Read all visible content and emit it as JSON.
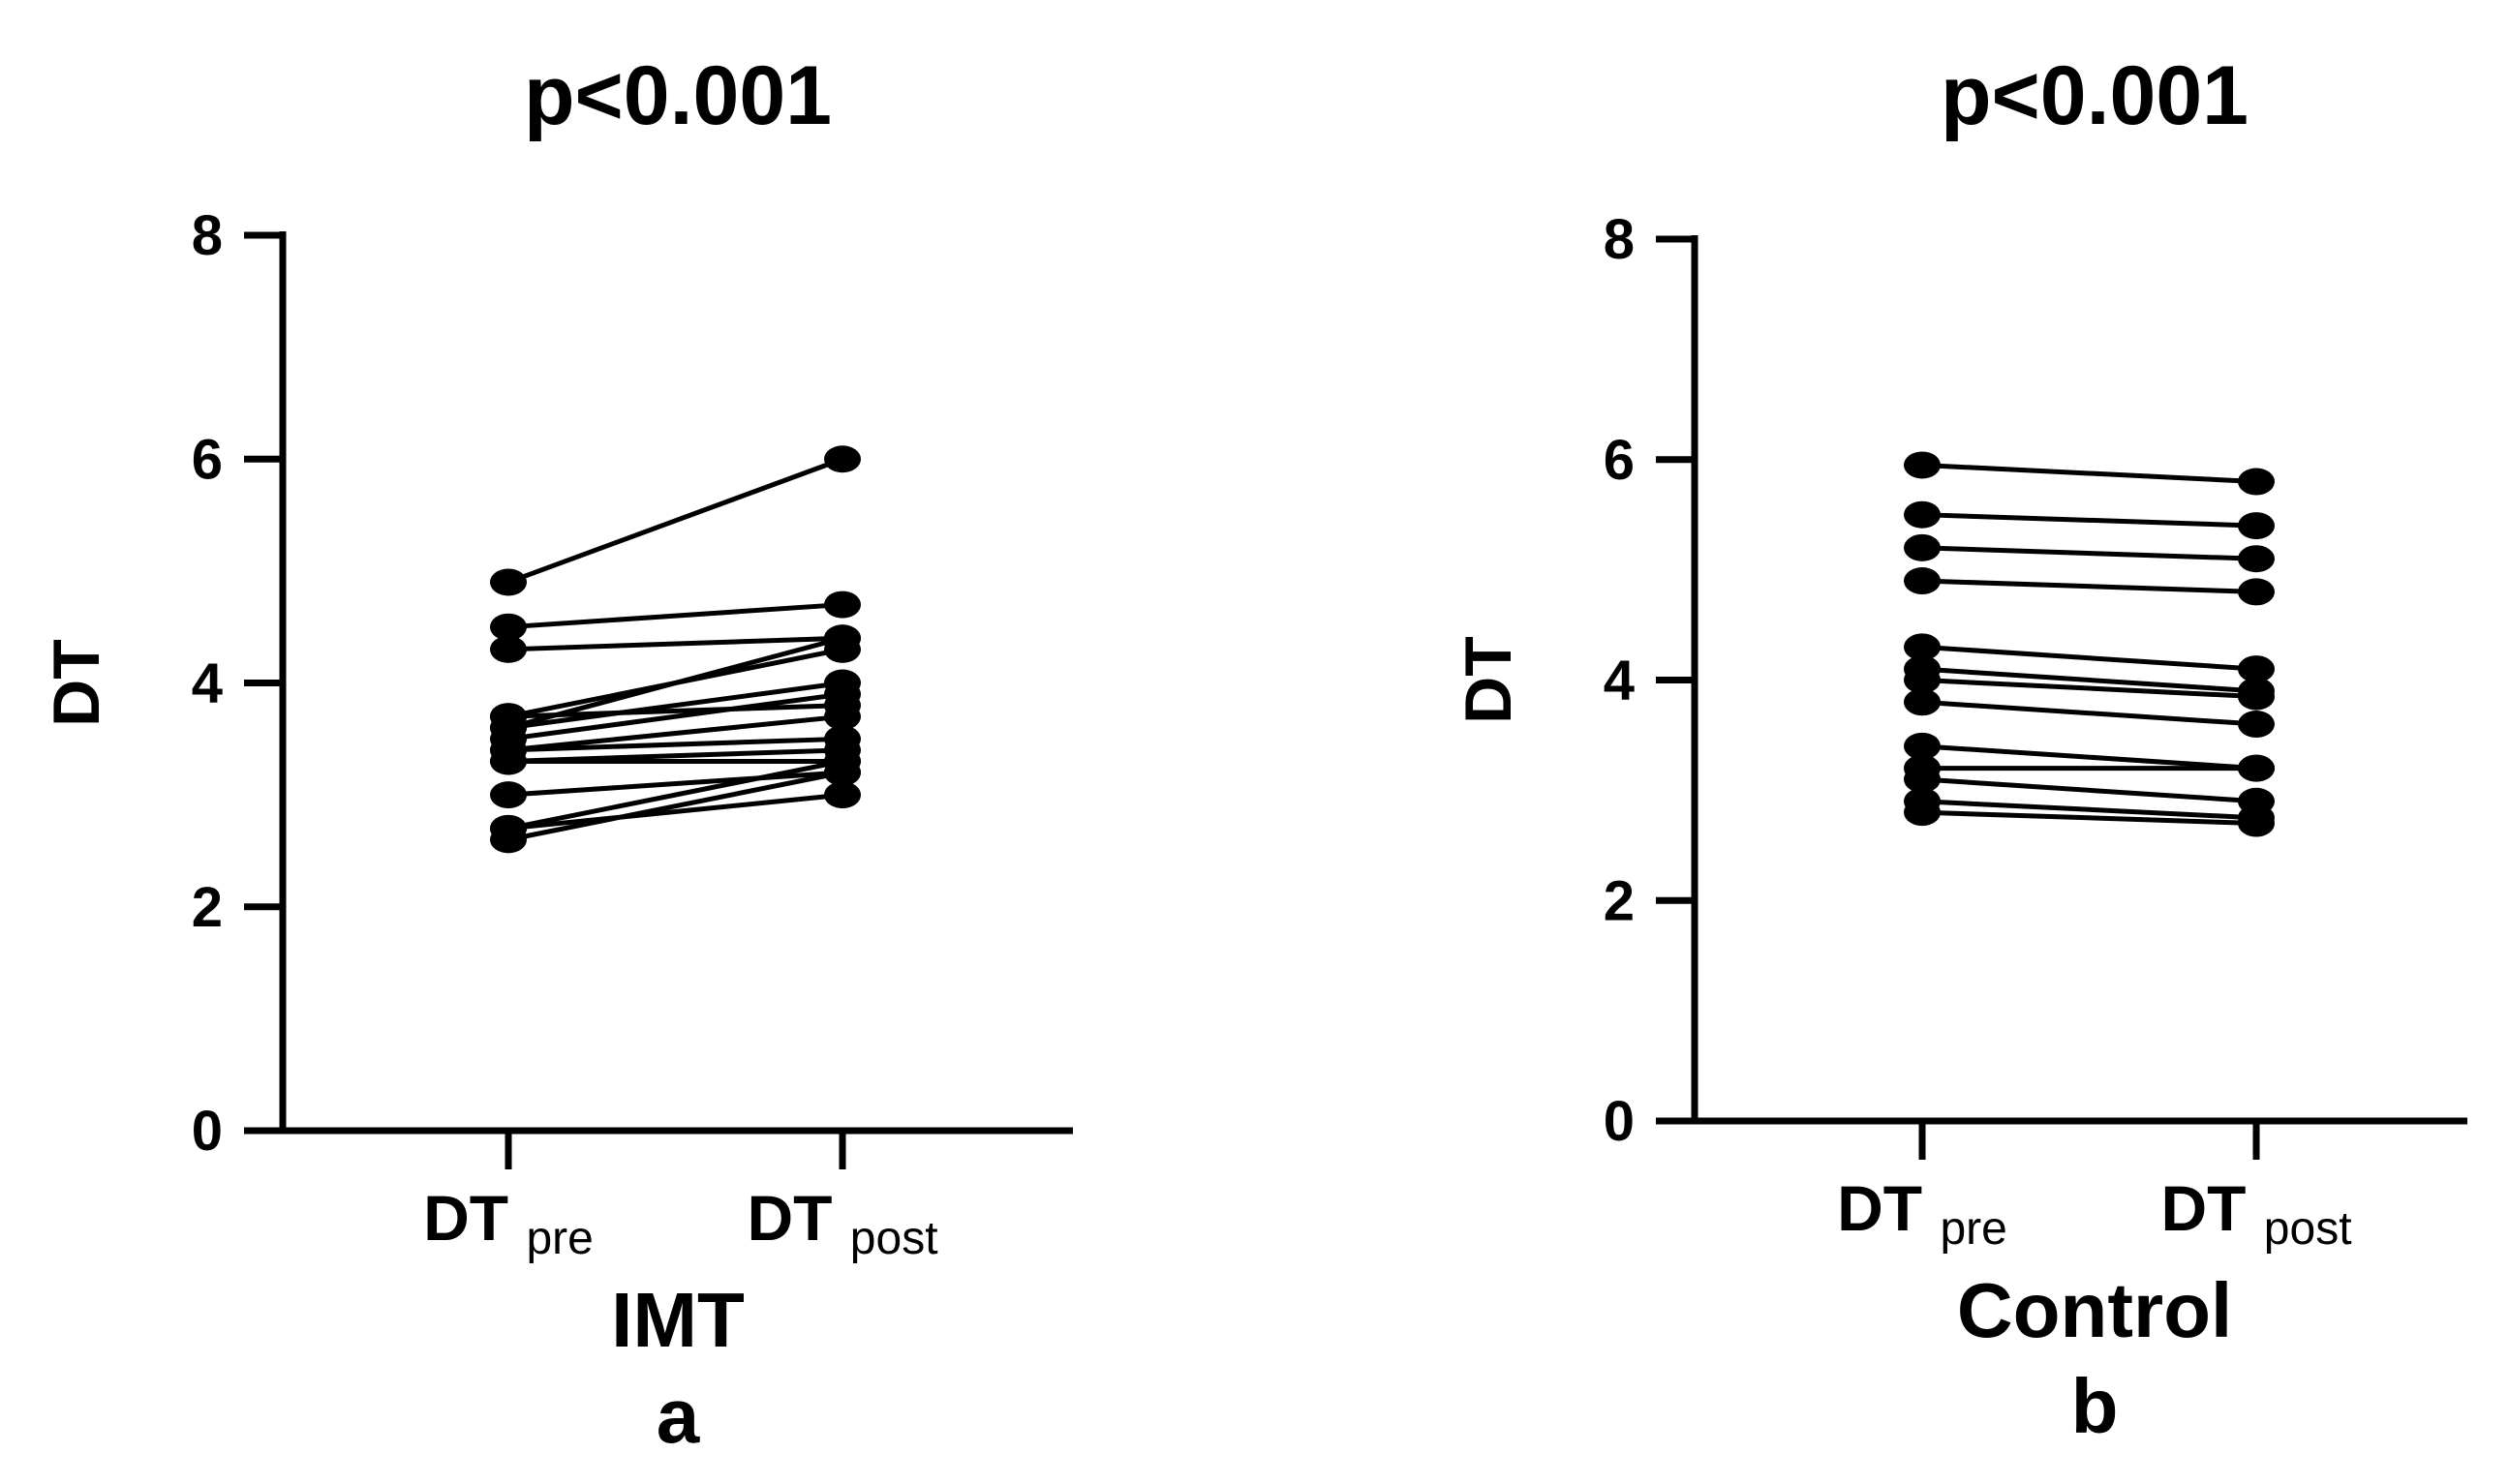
{
  "chart_data": [
    {
      "type": "line",
      "title": "p<0.001",
      "ylabel": "DT",
      "group_label": "IMT",
      "panel_label": "a",
      "categories": [
        {
          "main": "DT",
          "sub": "pre"
        },
        {
          "main": "DT",
          "sub": "post"
        }
      ],
      "ylim": [
        0,
        8
      ],
      "yticks": [
        0,
        2,
        4,
        6,
        8
      ],
      "pairs": [
        [
          4.9,
          6.0
        ],
        [
          4.5,
          4.7
        ],
        [
          4.3,
          4.4
        ],
        [
          3.7,
          4.3
        ],
        [
          3.6,
          4.4
        ],
        [
          3.7,
          3.8
        ],
        [
          3.6,
          4.0
        ],
        [
          3.5,
          3.9
        ],
        [
          3.4,
          3.7
        ],
        [
          3.4,
          3.5
        ],
        [
          3.3,
          3.4
        ],
        [
          3.3,
          3.3
        ],
        [
          3.0,
          3.2
        ],
        [
          2.7,
          3.3
        ],
        [
          2.7,
          3.0
        ],
        [
          2.6,
          3.2
        ]
      ]
    },
    {
      "type": "line",
      "title": "p<0.001",
      "ylabel": "DT",
      "group_label": "Control",
      "panel_label": "b",
      "categories": [
        {
          "main": "DT",
          "sub": "pre"
        },
        {
          "main": "DT",
          "sub": "post"
        }
      ],
      "ylim": [
        0,
        8
      ],
      "yticks": [
        0,
        2,
        4,
        6,
        8
      ],
      "pairs": [
        [
          5.95,
          5.8
        ],
        [
          5.5,
          5.4
        ],
        [
          5.2,
          5.1
        ],
        [
          4.9,
          4.8
        ],
        [
          4.3,
          4.1
        ],
        [
          4.1,
          3.9
        ],
        [
          4.0,
          3.85
        ],
        [
          3.8,
          3.6
        ],
        [
          3.4,
          3.2
        ],
        [
          3.2,
          3.2
        ],
        [
          3.1,
          2.9
        ],
        [
          2.9,
          2.75
        ],
        [
          2.8,
          2.7
        ]
      ]
    }
  ]
}
